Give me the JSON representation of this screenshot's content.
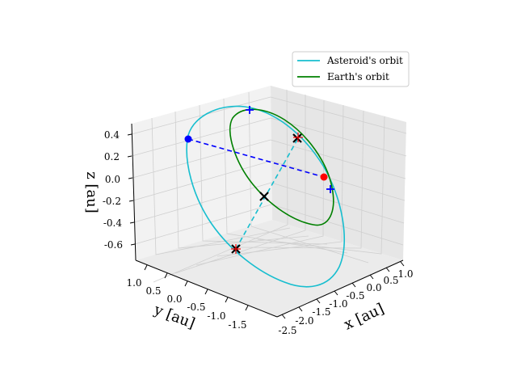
{
  "chart_data": {
    "type": "line",
    "projection": "3d",
    "grid": true,
    "legend_position": "top-right",
    "axes": {
      "x": {
        "label": "x [au]",
        "ticks": [
          "-2.5",
          "-2.0",
          "-1.5",
          "-1.0",
          "-0.5",
          "0.0",
          "0.5",
          "1.0"
        ]
      },
      "y": {
        "label": "y [au]",
        "ticks": [
          "1.0",
          "0.5",
          "0.0",
          "-0.5",
          "-1.0",
          "-1.5"
        ]
      },
      "z": {
        "label": "z [au]",
        "ticks": [
          "0.4",
          "0.2",
          "0.0",
          "-0.2",
          "-0.4",
          "-0.6"
        ]
      }
    },
    "series": [
      {
        "name": "Asteroid's orbit",
        "color": "#17becf",
        "style": "solid"
      },
      {
        "name": "Earth's orbit",
        "color": "#008000",
        "style": "solid"
      }
    ],
    "markers": [
      {
        "kind": "dot",
        "color": "#0000ff"
      },
      {
        "kind": "dot",
        "color": "#ff0000"
      },
      {
        "kind": "plus",
        "color": "#0000ff"
      },
      {
        "kind": "plus",
        "color": "#0000ff"
      },
      {
        "kind": "x",
        "color": "#000000"
      },
      {
        "kind": "x",
        "color": "#000000"
      },
      {
        "kind": "x",
        "color": "#000000"
      },
      {
        "kind": "star",
        "color": "#ff0000"
      },
      {
        "kind": "star",
        "color": "#ff0000"
      }
    ],
    "connectors": [
      {
        "kind": "dashed",
        "color": "#0000ff"
      },
      {
        "kind": "dashed",
        "color": "#17becf"
      }
    ]
  }
}
